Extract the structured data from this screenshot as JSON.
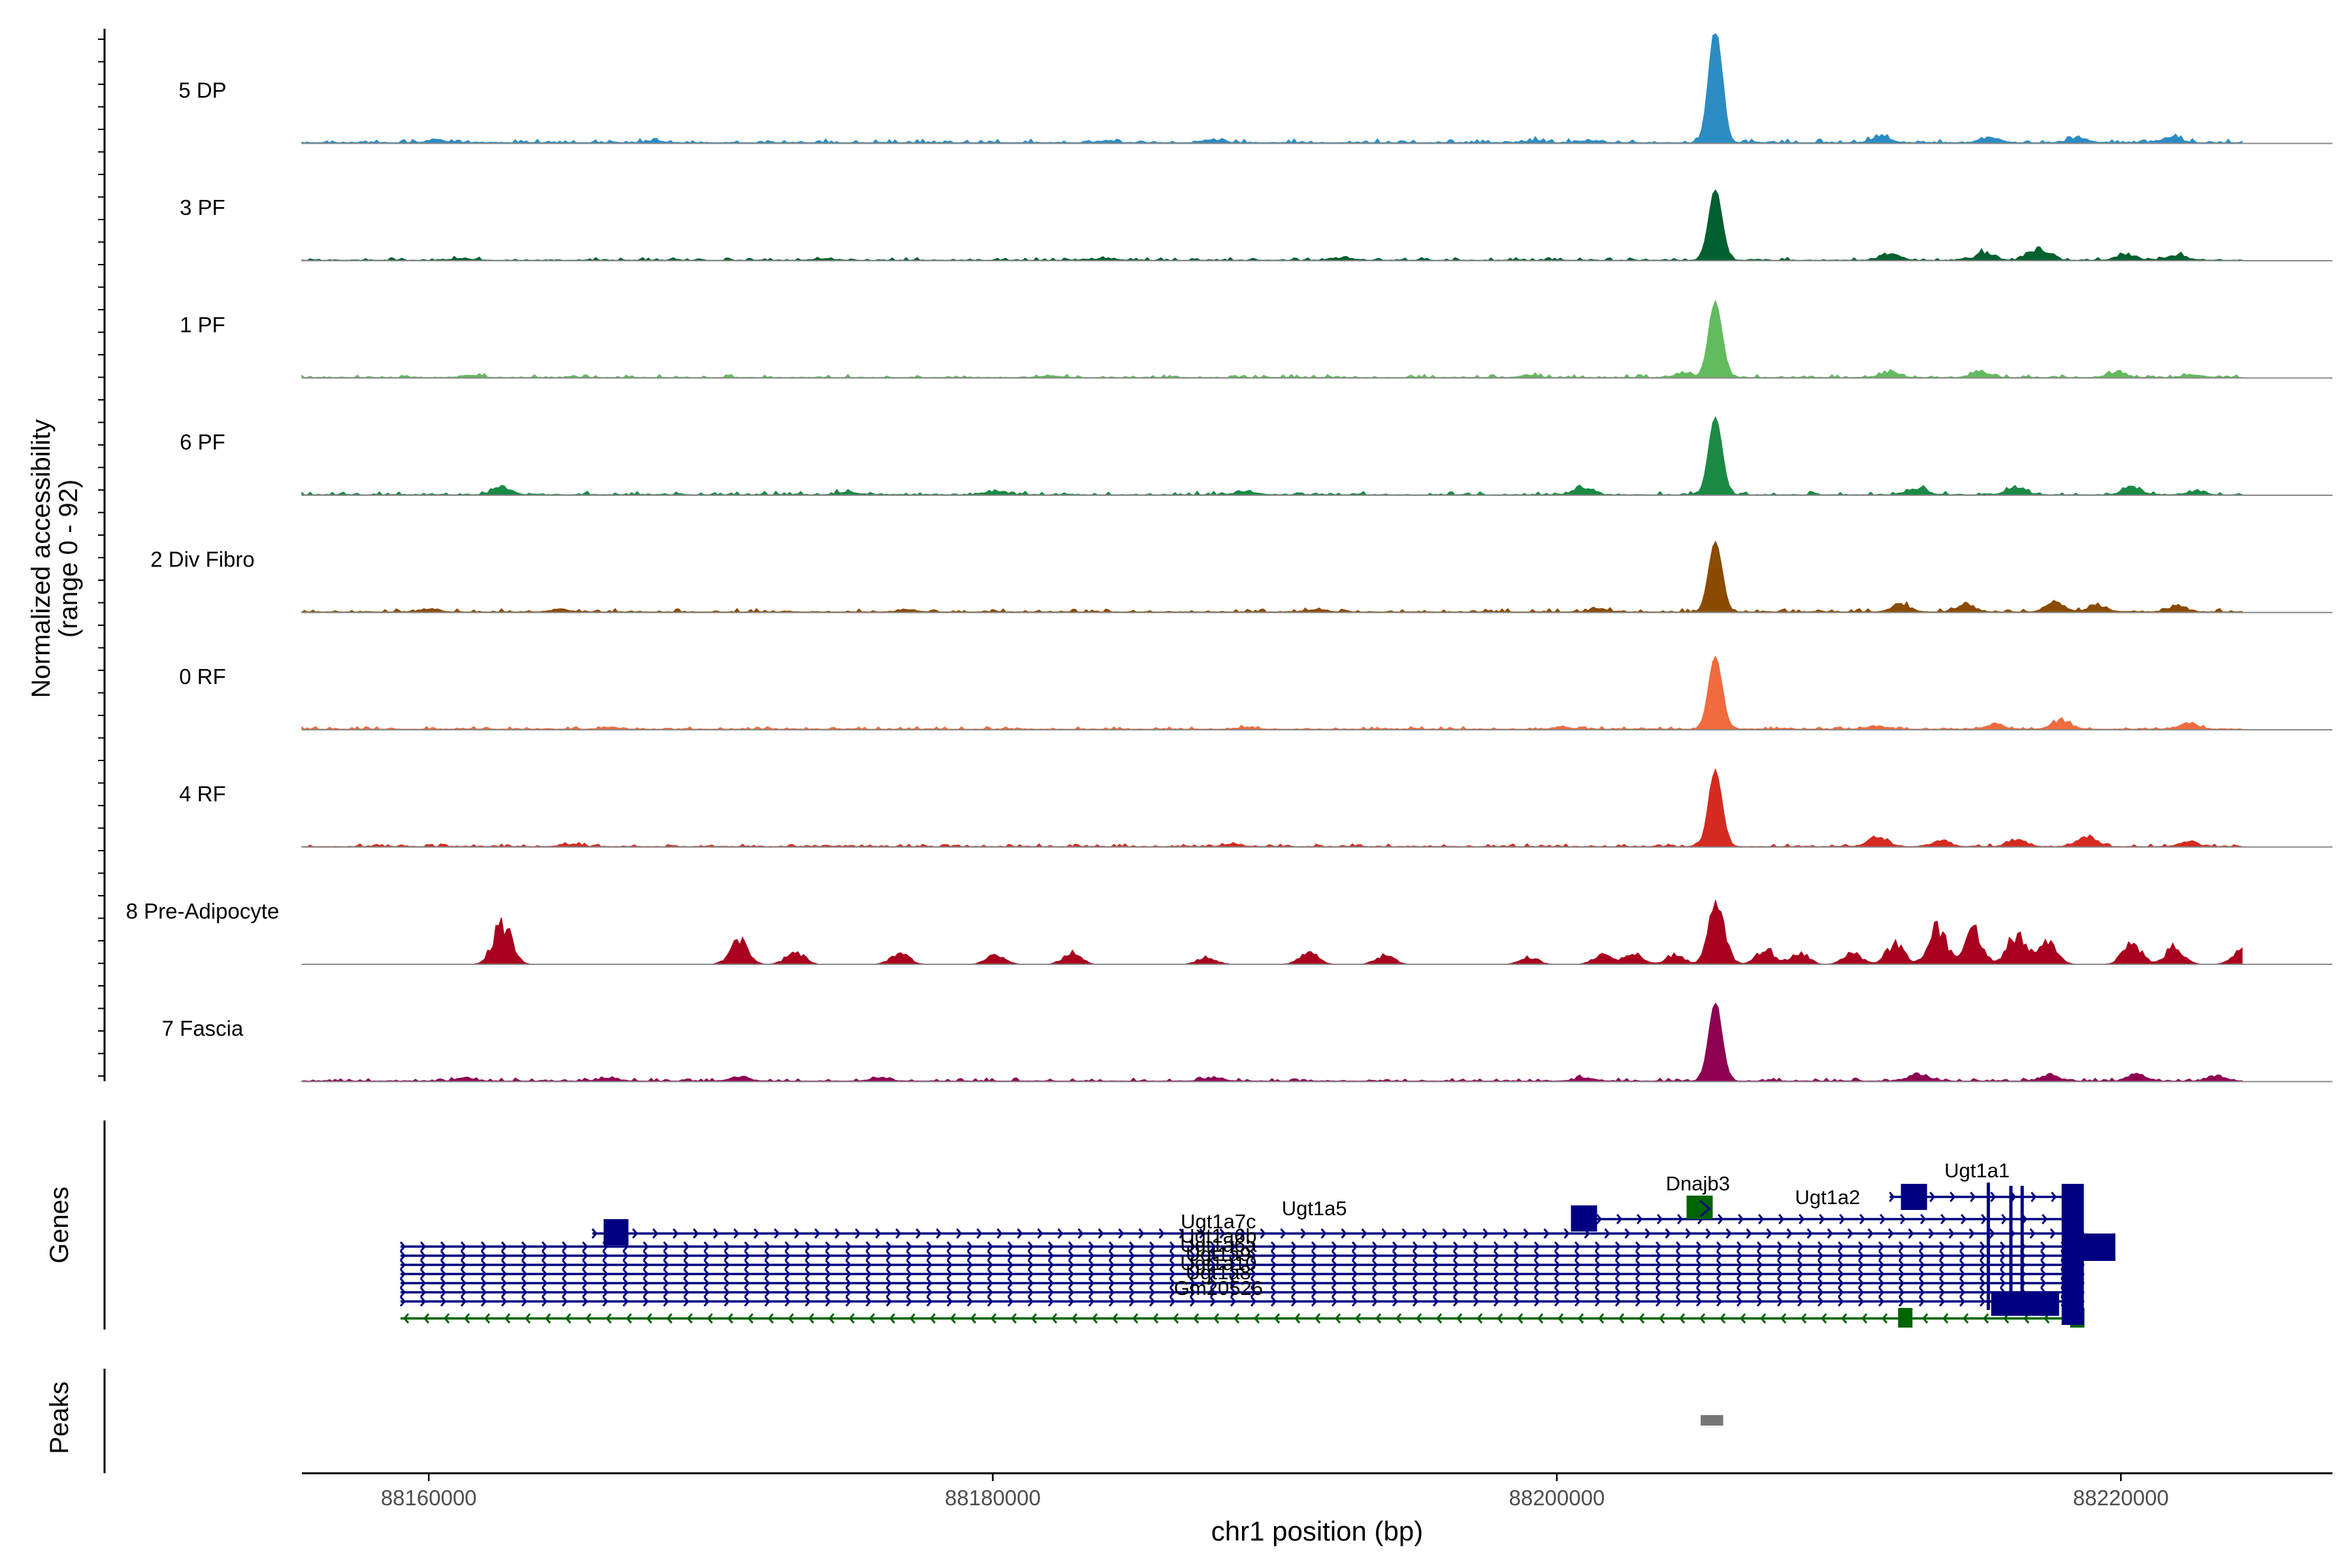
{
  "chart_data": {
    "type": "area",
    "title": "",
    "ylabel_line1": "Normalized accessibility",
    "ylabel_line2": "(range 0 - 92)",
    "xlabel": "chr1 position (bp)",
    "xlim": [
      88155500,
      88227500
    ],
    "ylim": [
      0,
      92
    ],
    "x_ticks": [
      88160000,
      88180000,
      88200000,
      88220000
    ],
    "x_tick_labels": [
      "88160000",
      "88180000",
      "88200000",
      "88220000"
    ],
    "tracks": [
      {
        "name": "5 DP",
        "color": "#2b8cc4",
        "baseline": 0.6,
        "noise": 3.2,
        "peak": 92,
        "bumps": [
          [
            88160300,
            2.6
          ],
          [
            88168000,
            1.8
          ],
          [
            88184000,
            2.2
          ],
          [
            88187800,
            3.0
          ],
          [
            88199200,
            2.0
          ],
          [
            88201200,
            2.6
          ],
          [
            88211500,
            6.5
          ],
          [
            88215400,
            5.5
          ],
          [
            88218500,
            6.0
          ],
          [
            88221800,
            5.6
          ]
        ]
      },
      {
        "name": "3 PF",
        "color": "#00602f",
        "baseline": 0.4,
        "noise": 2.4,
        "peak": 56,
        "bumps": [
          [
            88161200,
            1.6
          ],
          [
            88174000,
            1.8
          ],
          [
            88184000,
            2.2
          ],
          [
            88192500,
            2.4
          ],
          [
            88211800,
            7.2
          ],
          [
            88215200,
            8.5
          ],
          [
            88217100,
            14.0
          ],
          [
            88220200,
            6.8
          ],
          [
            88222000,
            5.6
          ]
        ]
      },
      {
        "name": "1 PF",
        "color": "#62bb5e",
        "baseline": 0.4,
        "noise": 2.6,
        "peak": 60,
        "bumps": [
          [
            88161500,
            2.4
          ],
          [
            88182000,
            1.8
          ],
          [
            88199000,
            2.4
          ],
          [
            88204500,
            4.2
          ],
          [
            88211800,
            6.4
          ],
          [
            88215000,
            6.2
          ],
          [
            88219800,
            4.8
          ],
          [
            88222600,
            3.2
          ]
        ]
      },
      {
        "name": "6 PF",
        "color": "#1a8a45",
        "baseline": 0.4,
        "noise": 3.0,
        "peak": 62,
        "bumps": [
          [
            88162600,
            8.0
          ],
          [
            88174800,
            3.2
          ],
          [
            88180000,
            3.6
          ],
          [
            88189000,
            4.4
          ],
          [
            88200900,
            8.5
          ],
          [
            88212800,
            7.6
          ],
          [
            88216300,
            9.0
          ],
          [
            88220400,
            8.0
          ],
          [
            88222600,
            3.2
          ]
        ]
      },
      {
        "name": "2 Div Fibro",
        "color": "#8b4b00",
        "baseline": 0.5,
        "noise": 2.8,
        "peak": 56,
        "bumps": [
          [
            88160000,
            3.2
          ],
          [
            88164600,
            2.6
          ],
          [
            88177000,
            2.6
          ],
          [
            88191500,
            2.4
          ],
          [
            88201500,
            3.0
          ],
          [
            88212200,
            9.0
          ],
          [
            88214500,
            8.4
          ],
          [
            88217700,
            10.0
          ],
          [
            88219200,
            7.2
          ],
          [
            88222000,
            6.4
          ]
        ]
      },
      {
        "name": "0 RF",
        "color": "#f06b3e",
        "baseline": 0.5,
        "noise": 2.2,
        "peak": 58,
        "bumps": [
          [
            88166400,
            2.0
          ],
          [
            88189000,
            2.0
          ],
          [
            88200200,
            2.4
          ],
          [
            88211300,
            3.6
          ],
          [
            88215500,
            4.8
          ],
          [
            88217900,
            10.0
          ],
          [
            88222400,
            6.4
          ]
        ]
      },
      {
        "name": "4 RF",
        "color": "#d52a20",
        "baseline": 0.4,
        "noise": 2.4,
        "peak": 60,
        "bumps": [
          [
            88165000,
            2.6
          ],
          [
            88188500,
            2.6
          ],
          [
            88211400,
            11.0
          ],
          [
            88213600,
            6.6
          ],
          [
            88216300,
            7.2
          ],
          [
            88218800,
            12.0
          ],
          [
            88222400,
            5.6
          ]
        ]
      },
      {
        "name": "8 Pre-Adipocyte",
        "color": "#a8001e",
        "baseline": 0.0,
        "noise": 0.0,
        "peak": 28,
        "bumps": [
          [
            88162600,
            44
          ],
          [
            88171000,
            26
          ],
          [
            88173000,
            14
          ],
          [
            88176700,
            12
          ],
          [
            88180100,
            10
          ],
          [
            88182800,
            12
          ],
          [
            88187600,
            8
          ],
          [
            88191200,
            14
          ],
          [
            88193900,
            10
          ],
          [
            88199000,
            8
          ],
          [
            88201600,
            10
          ],
          [
            88202700,
            12
          ],
          [
            88204200,
            10
          ],
          [
            88205700,
            30
          ],
          [
            88207400,
            16
          ],
          [
            88208600,
            12
          ],
          [
            88210500,
            12
          ],
          [
            88212000,
            22
          ],
          [
            88213500,
            38
          ],
          [
            88214800,
            34
          ],
          [
            88216300,
            32
          ],
          [
            88217400,
            26
          ],
          [
            88220400,
            24
          ],
          [
            88221900,
            18
          ],
          [
            88224300,
            16
          ]
        ]
      },
      {
        "name": "7 Fascia",
        "color": "#8e0152",
        "baseline": 0.5,
        "noise": 2.6,
        "peak": 62,
        "bumps": [
          [
            88161300,
            2.6
          ],
          [
            88166400,
            3.8
          ],
          [
            88171000,
            4.2
          ],
          [
            88176000,
            3.2
          ],
          [
            88187800,
            4.0
          ],
          [
            88201000,
            3.0
          ],
          [
            88212800,
            7.2
          ],
          [
            88217500,
            6.6
          ],
          [
            88220600,
            7.2
          ],
          [
            88223400,
            5.6
          ]
        ]
      }
    ],
    "peak_center": 88205600,
    "peak_width": 320,
    "genes_panel_label": "Genes",
    "peaks_panel_label": "Peaks",
    "gene_labels": [
      "Ugt1a7c",
      "Ugt1a5",
      "Ugt1a6b",
      "Ugt1a6a",
      "Ugt1a9",
      "Ugt1a10",
      "Ugt1a8",
      "Gm20526",
      "Dnajb3",
      "Ugt1a2",
      "Ugt1a1"
    ],
    "gene_color_plus": "#000080",
    "gene_color_minus": "#006400",
    "peak_regions": [
      [
        88205100,
        88205900
      ]
    ],
    "peak_color": "#777777"
  }
}
